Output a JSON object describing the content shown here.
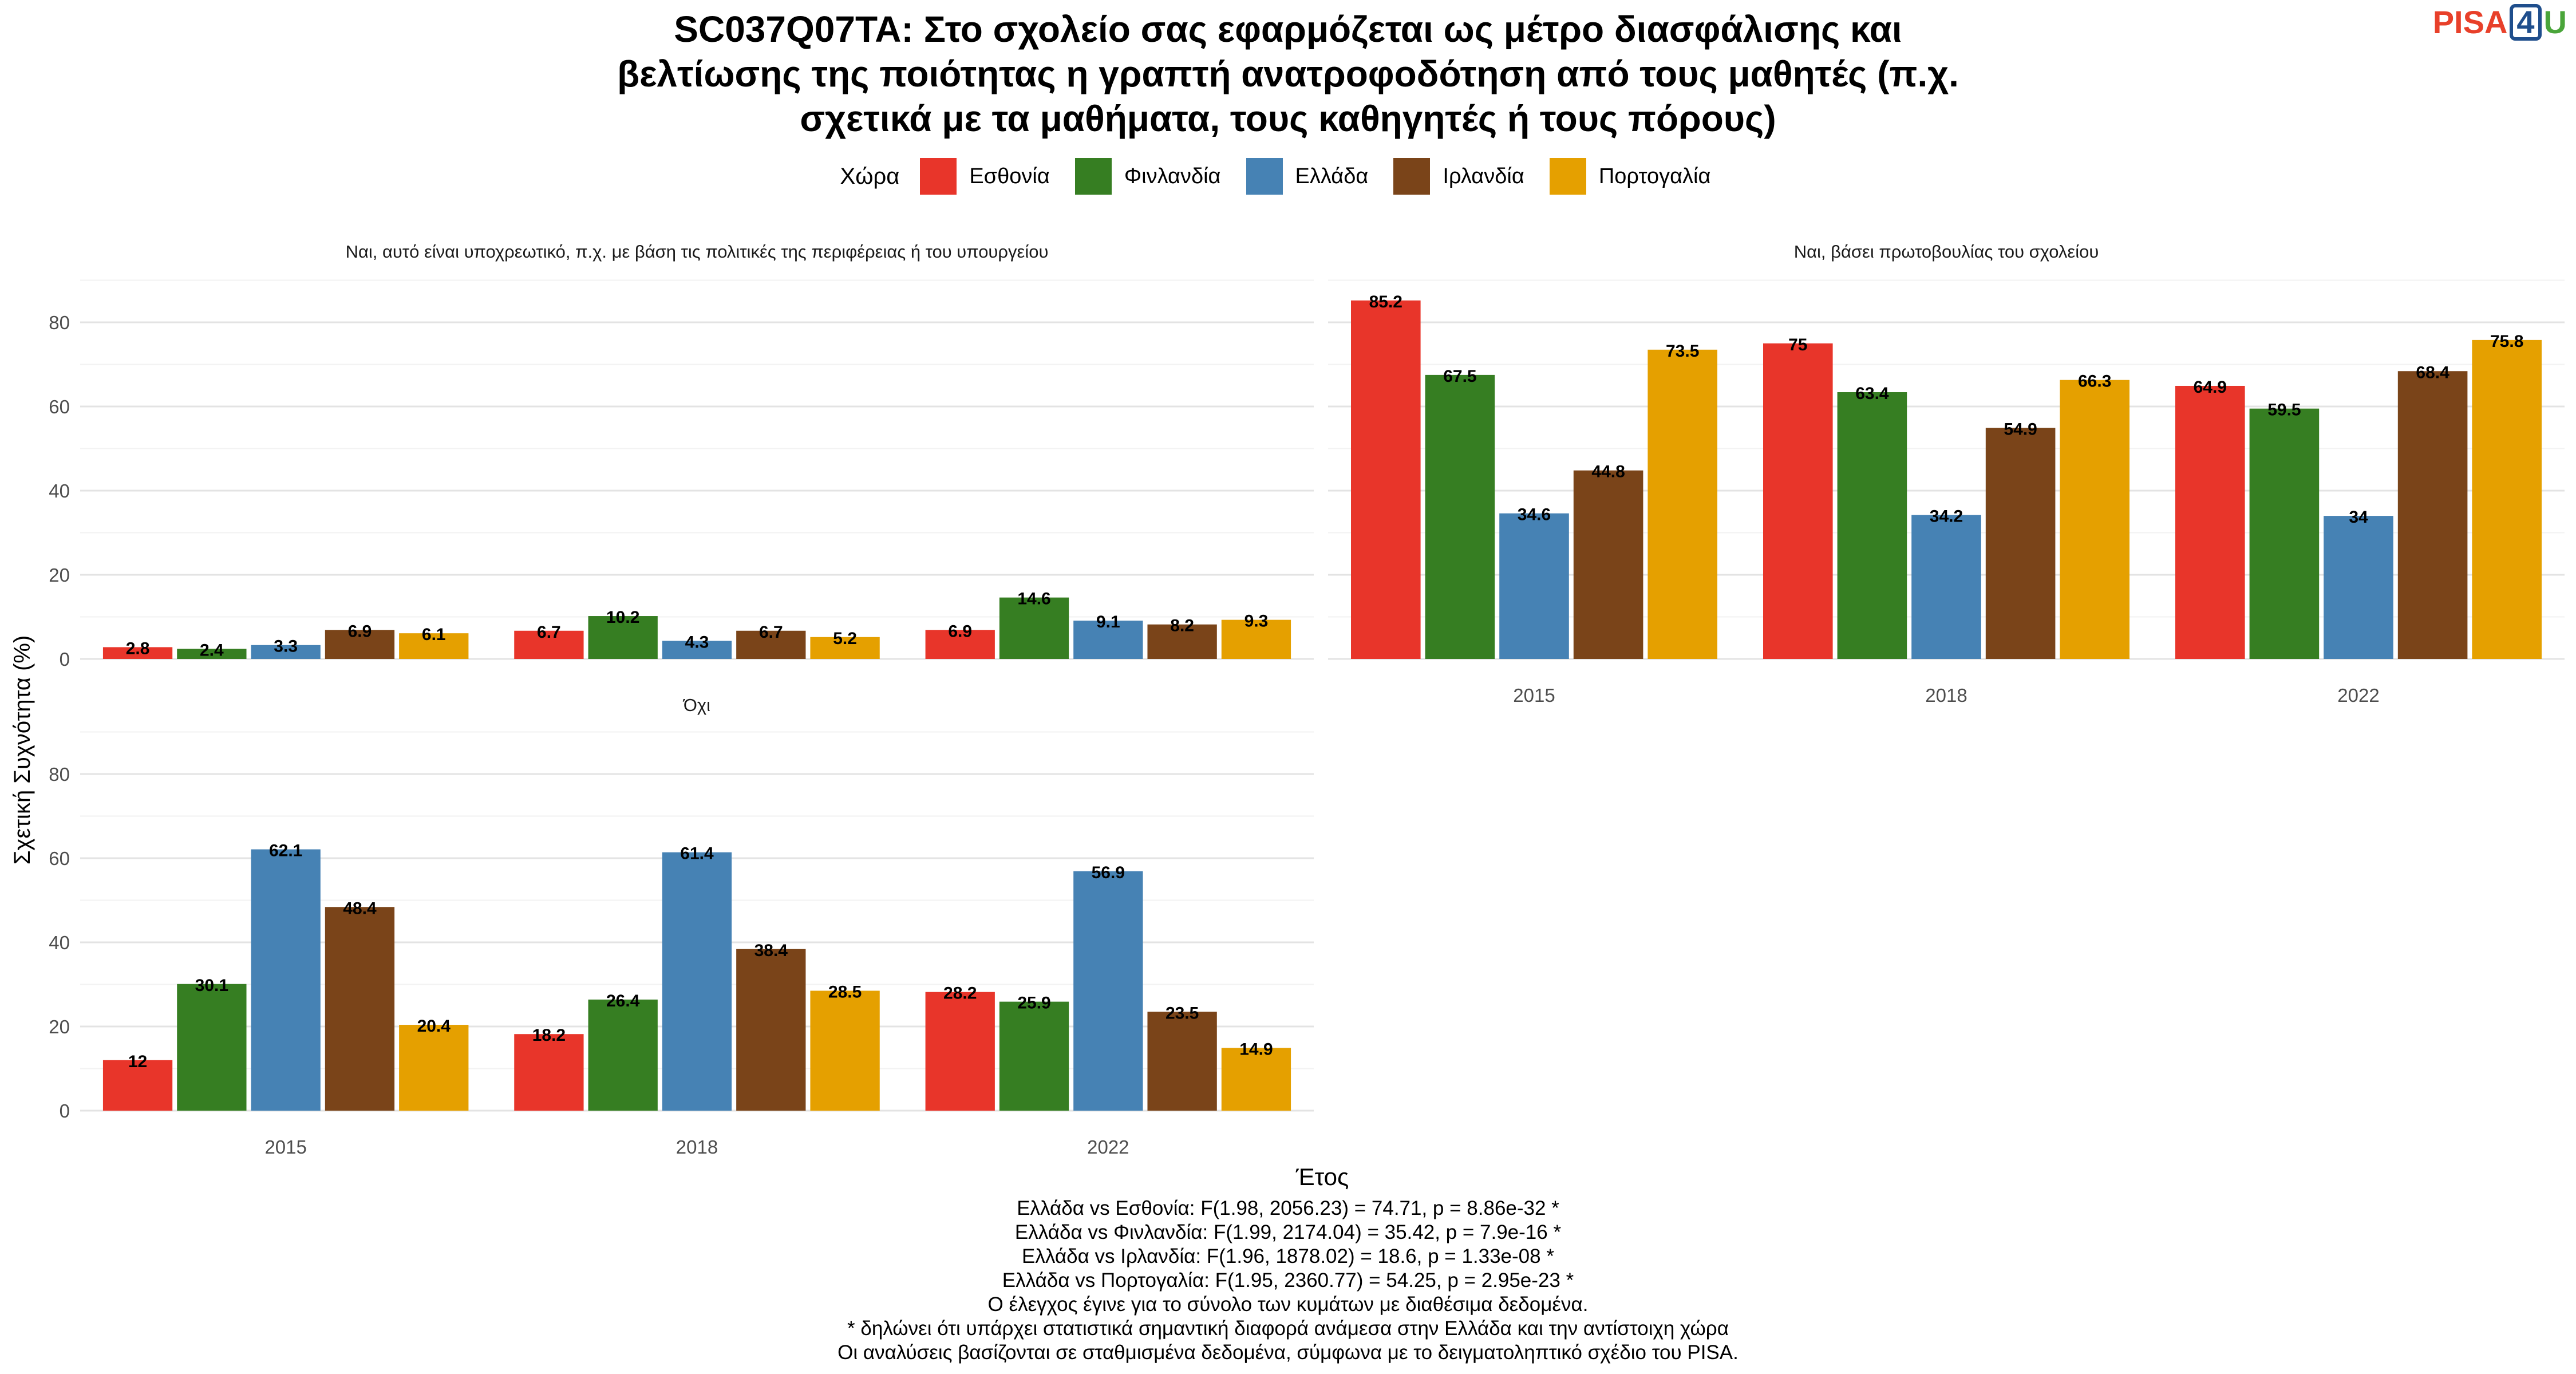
{
  "title_lines": [
    "SC037Q07TA: Στο σχολείο σας εφαρμόζεται ως μέτρο διασφάλισης και",
    "βελτίωσης της ποιότητας η γραπτή ανατροφοδότηση από τους μαθητές (π.χ.",
    "σχετικά με τα μαθήματα, τους καθηγητές ή τους πόρους)"
  ],
  "logo": {
    "pisa": "PISA",
    "four": "4",
    "u": "U"
  },
  "legend": {
    "title": "Χώρα"
  },
  "colors": {
    "Εσθονία": "#e8352a",
    "Φινλανδία": "#367e22",
    "Ελλάδα": "#4682b4",
    "Ιρλανδία": "#7a4419",
    "Πορτογαλία": "#e5a000"
  },
  "chart_data": {
    "type": "bar",
    "xlabel": "Έτος",
    "ylabel": "Σχετική Συχνότητα (%)",
    "ylim": [
      0,
      90
    ],
    "yticks": [
      0,
      20,
      40,
      60,
      80
    ],
    "categories": [
      "2015",
      "2018",
      "2022"
    ],
    "series_names": [
      "Εσθονία",
      "Φινλανδία",
      "Ελλάδα",
      "Ιρλανδία",
      "Πορτογαλία"
    ],
    "grid": true,
    "legend_position": "top",
    "panels": [
      {
        "title": "Ναι, αυτό είναι υποχρεωτικό, π.χ. με βάση τις πολιτικές της περιφέρειας ή του υπουργείου",
        "series": [
          {
            "name": "Εσθονία",
            "values": [
              2.8,
              6.7,
              6.9
            ]
          },
          {
            "name": "Φινλανδία",
            "values": [
              2.4,
              10.2,
              14.6
            ]
          },
          {
            "name": "Ελλάδα",
            "values": [
              3.3,
              4.3,
              9.1
            ]
          },
          {
            "name": "Ιρλανδία",
            "values": [
              6.9,
              6.7,
              8.2
            ]
          },
          {
            "name": "Πορτογαλία",
            "values": [
              6.1,
              5.2,
              9.3
            ]
          }
        ]
      },
      {
        "title": "Ναι, βάσει πρωτοβουλίας του σχολείου",
        "series": [
          {
            "name": "Εσθονία",
            "values": [
              85.2,
              75,
              64.9
            ]
          },
          {
            "name": "Φινλανδία",
            "values": [
              67.5,
              63.4,
              59.5
            ]
          },
          {
            "name": "Ελλάδα",
            "values": [
              34.6,
              34.2,
              34
            ]
          },
          {
            "name": "Ιρλανδία",
            "values": [
              44.8,
              54.9,
              68.4
            ]
          },
          {
            "name": "Πορτογαλία",
            "values": [
              73.5,
              66.3,
              75.8
            ]
          }
        ]
      },
      {
        "title": "Όχι",
        "series": [
          {
            "name": "Εσθονία",
            "values": [
              12,
              18.2,
              28.2
            ]
          },
          {
            "name": "Φινλανδία",
            "values": [
              30.1,
              26.4,
              25.9
            ]
          },
          {
            "name": "Ελλάδα",
            "values": [
              62.1,
              61.4,
              56.9
            ]
          },
          {
            "name": "Ιρλανδία",
            "values": [
              48.4,
              38.4,
              23.5
            ]
          },
          {
            "name": "Πορτογαλία",
            "values": [
              20.4,
              28.5,
              14.9
            ]
          }
        ]
      }
    ]
  },
  "footnotes": [
    "Ελλάδα vs Εσθονία: F(1.98, 2056.23) = 74.71, p = 8.86e-32 *",
    "Ελλάδα vs Φινλανδία: F(1.99, 2174.04) = 35.42, p = 7.9e-16 *",
    "Ελλάδα vs Ιρλανδία: F(1.96, 1878.02) = 18.6, p = 1.33e-08 *",
    "Ελλάδα vs Πορτογαλία: F(1.95, 2360.77) = 54.25, p = 2.95e-23 *",
    "Ο έλεγχος έγινε για το σύνολο των κυμάτων με διαθέσιμα δεδομένα.",
    "* δηλώνει ότι υπάρχει στατιστικά σημαντική διαφορά ανάμεσα στην Ελλάδα και την αντίστοιχη χώρα",
    "Οι αναλύσεις βασίζονται σε σταθμισμένα δεδομένα, σύμφωνα με το δειγματοληπτικό σχέδιο του PISA."
  ]
}
